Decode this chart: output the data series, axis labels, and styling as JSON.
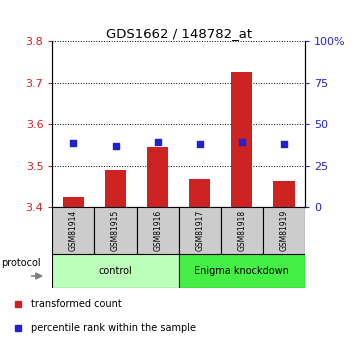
{
  "title": "GDS1662 / 148782_at",
  "samples": [
    "GSM81914",
    "GSM81915",
    "GSM81916",
    "GSM81917",
    "GSM81918",
    "GSM81919"
  ],
  "bar_values": [
    3.425,
    3.49,
    3.545,
    3.468,
    3.725,
    3.462
  ],
  "dot_values": [
    3.555,
    3.548,
    3.558,
    3.553,
    3.558,
    3.552
  ],
  "bar_bottom": 3.4,
  "ylim_left": [
    3.4,
    3.8
  ],
  "ylim_right": [
    0,
    100
  ],
  "yticks_left": [
    3.4,
    3.5,
    3.6,
    3.7,
    3.8
  ],
  "yticks_right": [
    0,
    25,
    50,
    75,
    100
  ],
  "ytick_labels_right": [
    "0",
    "25",
    "50",
    "75",
    "100%"
  ],
  "bar_color": "#cc2222",
  "dot_color": "#2222cc",
  "groups": [
    {
      "label": "control",
      "indices": [
        0,
        1,
        2
      ],
      "color": "#bbffbb"
    },
    {
      "label": "Enigma knockdown",
      "indices": [
        3,
        4,
        5
      ],
      "color": "#44ee44"
    }
  ],
  "protocol_label": "protocol",
  "legend": [
    {
      "label": "transformed count",
      "color": "#cc2222"
    },
    {
      "label": "percentile rank within the sample",
      "color": "#2222cc"
    }
  ],
  "tick_label_color_left": "#cc2222",
  "tick_label_color_right": "#2222cc",
  "sample_box_color": "#cccccc",
  "grid_color": "#000000"
}
